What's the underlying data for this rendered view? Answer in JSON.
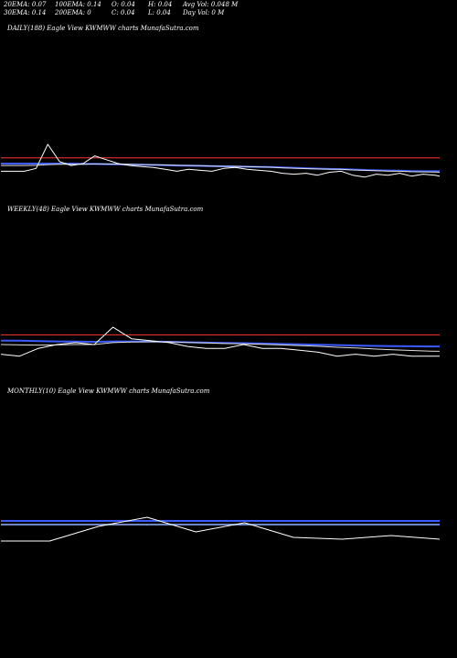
{
  "header": {
    "ema20": "20EMA: 0.07",
    "ema100": "100EMA: 0.14",
    "open": "O: 0.04",
    "high": "H: 0.04",
    "avg_vol": "Avg Vol: 0.048  M",
    "ema30": "30EMA: 0.14",
    "ema200": "200EMA: 0",
    "close": "C: 0.04",
    "low": "L: 0.04",
    "day_vol": "Day Vol: 0  M"
  },
  "colors": {
    "background": "#000000",
    "price": "#ffffff",
    "ema_blue": "#3b5bff",
    "ema_light": "#9bb0ff",
    "ema_red": "#ff3333",
    "ema_white": "#dddddd"
  },
  "chart_data": [
    {
      "type": "line",
      "panel": "daily",
      "title": "DAILY(188) Eagle   View  KWMWW charts MunafaSutra.com",
      "x": [
        1,
        6,
        11,
        16,
        21,
        26,
        31,
        36,
        41,
        46,
        51,
        56,
        61,
        66,
        71,
        76,
        81,
        86,
        91,
        96,
        101,
        106,
        111,
        116,
        121,
        126,
        131,
        136,
        141,
        146,
        151,
        156,
        161,
        166,
        171,
        176,
        181,
        186,
        188
      ],
      "series": [
        {
          "role": "price",
          "values": [
            0.04,
            0.04,
            0.04,
            0.055,
            0.18,
            0.09,
            0.07,
            0.08,
            0.12,
            0.1,
            0.08,
            0.07,
            0.065,
            0.06,
            0.05,
            0.04,
            0.05,
            0.045,
            0.04,
            0.055,
            0.06,
            0.05,
            0.045,
            0.04,
            0.03,
            0.025,
            0.03,
            0.02,
            0.035,
            0.04,
            0.02,
            0.01,
            0.025,
            0.02,
            0.03,
            0.015,
            0.025,
            0.02,
            0.015
          ]
        },
        {
          "role": "ema-blue",
          "values": [
            0.08,
            0.08,
            0.08,
            0.08,
            0.08,
            0.08,
            0.08,
            0.078,
            0.078,
            0.076,
            0.076,
            0.075,
            0.074,
            0.073,
            0.072,
            0.07,
            0.069,
            0.068,
            0.067,
            0.066,
            0.065,
            0.064,
            0.063,
            0.062,
            0.06,
            0.058,
            0.056,
            0.054,
            0.052,
            0.051,
            0.049,
            0.047,
            0.045,
            0.044,
            0.043,
            0.041,
            0.04,
            0.04,
            0.04
          ]
        },
        {
          "role": "ema-red",
          "values": [
            0.11,
            0.11,
            0.11,
            0.11,
            0.11,
            0.11,
            0.11,
            0.11,
            0.11,
            0.11,
            0.11,
            0.11,
            0.11,
            0.11,
            0.11,
            0.11,
            0.11,
            0.11,
            0.11,
            0.11,
            0.11,
            0.11,
            0.11,
            0.11,
            0.11,
            0.11,
            0.11,
            0.11,
            0.11,
            0.11,
            0.11,
            0.11,
            0.11,
            0.11,
            0.11,
            0.11,
            0.11,
            0.11,
            0.11
          ]
        },
        {
          "role": "ema-white",
          "values": [
            0.07,
            0.07,
            0.07,
            0.071,
            0.075,
            0.076,
            0.076,
            0.076,
            0.078,
            0.078,
            0.077,
            0.076,
            0.075,
            0.074,
            0.073,
            0.071,
            0.07,
            0.069,
            0.067,
            0.066,
            0.066,
            0.064,
            0.063,
            0.061,
            0.058,
            0.056,
            0.054,
            0.052,
            0.051,
            0.05,
            0.047,
            0.045,
            0.043,
            0.041,
            0.04,
            0.038,
            0.037,
            0.036,
            0.035
          ]
        }
      ],
      "ylim": [
        -0.1,
        0.8
      ]
    },
    {
      "type": "line",
      "panel": "weekly",
      "title": "WEEKLY(48) Eagle   View  KWMWW charts MunafaSutra.com",
      "x": [
        1,
        3,
        5,
        7,
        9,
        11,
        13,
        15,
        17,
        19,
        21,
        23,
        25,
        27,
        29,
        31,
        33,
        35,
        37,
        39,
        41,
        43,
        45,
        47,
        48
      ],
      "series": [
        {
          "role": "price",
          "values": [
            0.03,
            0.02,
            0.06,
            0.08,
            0.09,
            0.08,
            0.17,
            0.11,
            0.1,
            0.09,
            0.07,
            0.06,
            0.06,
            0.08,
            0.06,
            0.06,
            0.05,
            0.04,
            0.02,
            0.03,
            0.02,
            0.03,
            0.02,
            0.02,
            0.02
          ]
        },
        {
          "role": "ema-blue",
          "values": [
            0.1,
            0.1,
            0.098,
            0.096,
            0.095,
            0.094,
            0.096,
            0.096,
            0.095,
            0.094,
            0.092,
            0.09,
            0.088,
            0.087,
            0.085,
            0.083,
            0.081,
            0.079,
            0.077,
            0.075,
            0.073,
            0.072,
            0.071,
            0.07,
            0.07
          ]
        },
        {
          "role": "ema-red",
          "values": [
            0.13,
            0.13,
            0.13,
            0.13,
            0.13,
            0.13,
            0.13,
            0.13,
            0.13,
            0.13,
            0.13,
            0.13,
            0.13,
            0.13,
            0.13,
            0.13,
            0.13,
            0.13,
            0.13,
            0.13,
            0.13,
            0.13,
            0.13,
            0.13,
            0.13
          ]
        },
        {
          "role": "ema-white",
          "values": [
            0.08,
            0.078,
            0.077,
            0.078,
            0.08,
            0.08,
            0.09,
            0.093,
            0.094,
            0.094,
            0.091,
            0.088,
            0.085,
            0.084,
            0.081,
            0.078,
            0.075,
            0.071,
            0.066,
            0.062,
            0.057,
            0.053,
            0.049,
            0.046,
            0.045
          ]
        }
      ],
      "ylim": [
        -0.1,
        0.8
      ]
    },
    {
      "type": "line",
      "panel": "monthly",
      "title": "MONTHLY(10) Eagle   View  KWMWW charts MunafaSutra.com",
      "x": [
        1,
        2,
        3,
        4,
        5,
        6,
        7,
        8,
        9,
        10
      ],
      "series": [
        {
          "role": "price",
          "values": [
            0.01,
            0.01,
            0.09,
            0.14,
            0.06,
            0.11,
            0.03,
            0.02,
            0.04,
            0.02
          ]
        },
        {
          "role": "ema-blue",
          "values": [
            0.12,
            0.12,
            0.12,
            0.12,
            0.12,
            0.12,
            0.12,
            0.12,
            0.12,
            0.12
          ]
        },
        {
          "role": "ema-light",
          "values": [
            0.1,
            0.1,
            0.1,
            0.1,
            0.1,
            0.1,
            0.1,
            0.1,
            0.1,
            0.1
          ]
        }
      ],
      "ylim": [
        -0.15,
        0.85
      ]
    }
  ]
}
